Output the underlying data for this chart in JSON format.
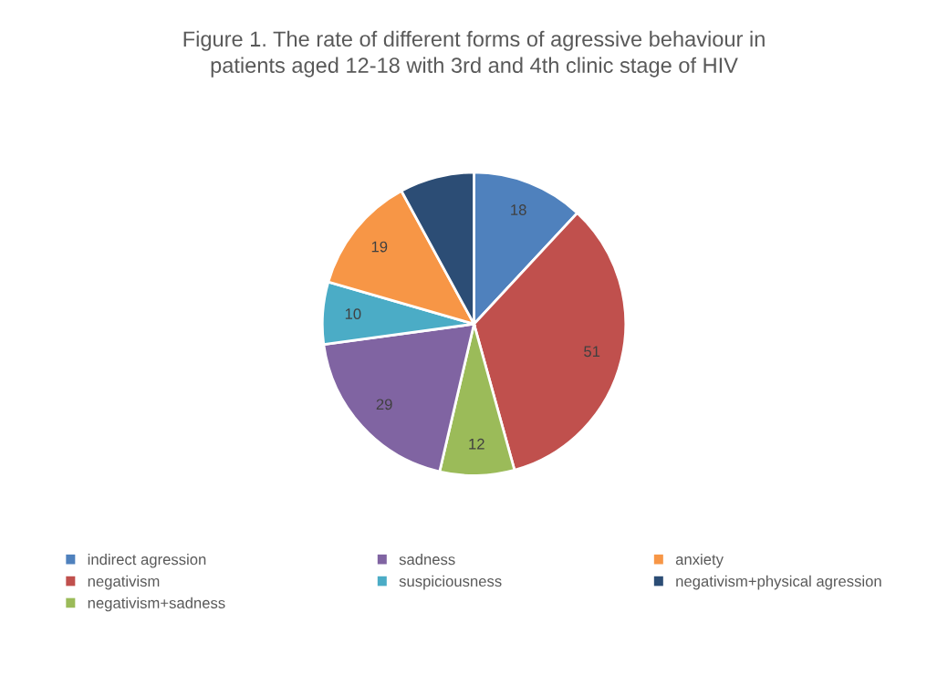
{
  "chart_data": {
    "type": "pie",
    "title": "Figure 1. The rate of different forms of agressive behaviour in\npatients aged 12-18 with 3rd and 4th clinic stage of HIV",
    "categories": [
      "indirect agression",
      "negativism",
      "negativism+sadness",
      "sadness",
      "suspiciousness",
      "anxiety",
      "negativism+physical agression"
    ],
    "values": [
      18,
      51,
      12,
      29,
      10,
      19,
      12
    ],
    "value_labels": [
      "18",
      "51",
      "12",
      "29",
      "10",
      "19",
      null
    ],
    "colors": [
      "#4f81bd",
      "#c0504d",
      "#9bbb59",
      "#8064a2",
      "#4bacc6",
      "#f79646",
      "#2c4d75"
    ],
    "legend": "bottom"
  }
}
